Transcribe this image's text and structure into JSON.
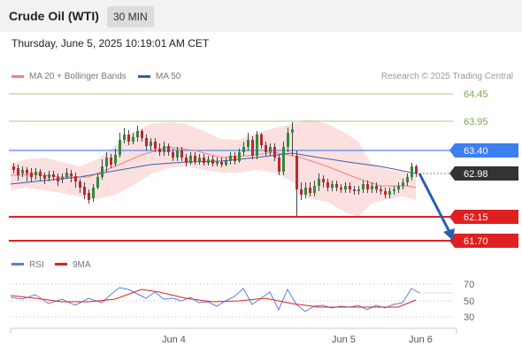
{
  "header": {
    "instrument": "Crude Oil (WTI)",
    "timeframe": "30 MIN"
  },
  "timestamp": "Thursday, June 5, 2025 10:19:01 AM CET",
  "legend": {
    "bands": "MA 20 + Bollinger Bands",
    "ma50": "MA 50",
    "credit": "Research © 2025 Trading Central"
  },
  "colors": {
    "bands": "#f08080",
    "ma50": "#3b5fa8",
    "rsi": "#5b7fd8",
    "rsi_ma": "#e02020"
  },
  "levels": [
    {
      "value": "64.45",
      "type": "resistance-outer"
    },
    {
      "value": "63.95",
      "type": "resistance-inner"
    },
    {
      "value": "63.40",
      "type": "pivot"
    },
    {
      "value": "62.98",
      "type": "last"
    },
    {
      "value": "62.15",
      "type": "support-1"
    },
    {
      "value": "61.70",
      "type": "support-2"
    }
  ],
  "xaxis": {
    "labels": [
      "Jun 4",
      "Jun 5",
      "Jun 6"
    ]
  },
  "rsi_panel": {
    "legend_rsi": "RSI",
    "legend_ma": "9MA",
    "ticks": [
      "70",
      "50",
      "30"
    ]
  }
}
